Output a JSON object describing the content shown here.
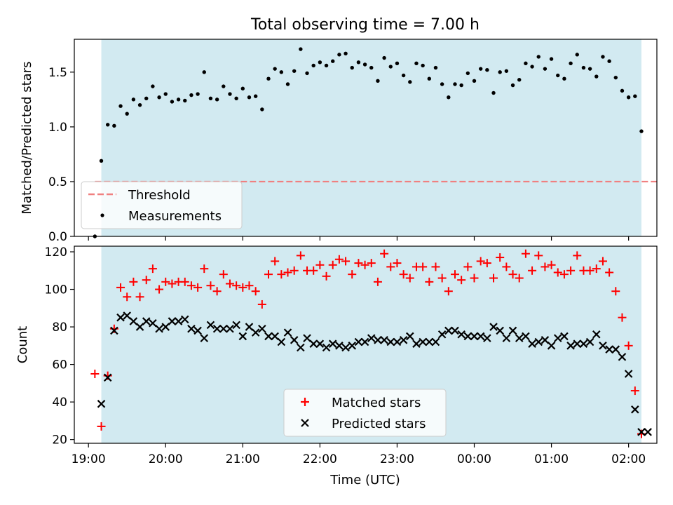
{
  "chart_data": [
    {
      "type": "scatter",
      "title": "Total observing time = 7.00 h",
      "xlabel": "",
      "ylabel": "Matched/Predicted stars",
      "ylim": [
        0,
        1.8
      ],
      "yticks": [
        "0.0",
        "0.5",
        "1.0",
        "1.5"
      ],
      "ytick_values": [
        0,
        0.5,
        1.0,
        1.5
      ],
      "observing_window": [
        "19:10",
        "02:10"
      ],
      "threshold": {
        "name": "Threshold",
        "value": 0.5,
        "color": "#f08080"
      },
      "legend": {
        "placement": "lower-left",
        "entries": [
          "Threshold",
          "Measurements"
        ]
      },
      "series": [
        {
          "name": "Measurements",
          "color": "#000000",
          "x": [
            "19:05",
            "19:10",
            "19:15",
            "19:20",
            "19:25",
            "19:30",
            "19:35",
            "19:40",
            "19:45",
            "19:50",
            "19:55",
            "20:00",
            "20:05",
            "20:10",
            "20:15",
            "20:20",
            "20:25",
            "20:30",
            "20:35",
            "20:40",
            "20:45",
            "20:50",
            "20:55",
            "21:00",
            "21:05",
            "21:10",
            "21:15",
            "21:20",
            "21:25",
            "21:30",
            "21:35",
            "21:40",
            "21:45",
            "21:50",
            "21:55",
            "22:00",
            "22:05",
            "22:10",
            "22:15",
            "22:20",
            "22:25",
            "22:30",
            "22:35",
            "22:40",
            "22:45",
            "22:50",
            "22:55",
            "23:00",
            "23:05",
            "23:10",
            "23:15",
            "23:20",
            "23:25",
            "23:30",
            "23:35",
            "23:40",
            "23:45",
            "23:50",
            "23:55",
            "00:00",
            "00:05",
            "00:10",
            "00:15",
            "00:20",
            "00:25",
            "00:30",
            "00:35",
            "00:40",
            "00:45",
            "00:50",
            "00:55",
            "01:00",
            "01:05",
            "01:10",
            "01:15",
            "01:20",
            "01:25",
            "01:30",
            "01:35",
            "01:40",
            "01:45",
            "01:50",
            "01:55",
            "02:00",
            "02:05",
            "02:10"
          ],
          "y": [
            0.0,
            0.69,
            1.02,
            1.01,
            1.19,
            1.12,
            1.25,
            1.2,
            1.26,
            1.37,
            1.27,
            1.3,
            1.23,
            1.25,
            1.24,
            1.29,
            1.3,
            1.5,
            1.26,
            1.25,
            1.37,
            1.3,
            1.26,
            1.35,
            1.27,
            1.28,
            1.16,
            1.44,
            1.53,
            1.5,
            1.39,
            1.51,
            1.71,
            1.49,
            1.56,
            1.59,
            1.56,
            1.6,
            1.66,
            1.67,
            1.54,
            1.59,
            1.57,
            1.54,
            1.42,
            1.63,
            1.55,
            1.58,
            1.47,
            1.41,
            1.58,
            1.56,
            1.44,
            1.54,
            1.39,
            1.27,
            1.39,
            1.38,
            1.49,
            1.42,
            1.53,
            1.52,
            1.31,
            1.5,
            1.51,
            1.38,
            1.43,
            1.58,
            1.55,
            1.64,
            1.53,
            1.62,
            1.47,
            1.44,
            1.58,
            1.66,
            1.54,
            1.53,
            1.46,
            1.64,
            1.6,
            1.45,
            1.33,
            1.27,
            1.28,
            0.96
          ]
        }
      ]
    },
    {
      "type": "scatter",
      "title": "",
      "xlabel": "Time (UTC)",
      "ylabel": "Count",
      "ylim": [
        18,
        123
      ],
      "yticks": [
        "20",
        "40",
        "60",
        "80",
        "100",
        "120"
      ],
      "ytick_values": [
        20,
        40,
        60,
        80,
        100,
        120
      ],
      "xticks": [
        "19:00",
        "20:00",
        "21:00",
        "22:00",
        "23:00",
        "00:00",
        "01:00",
        "02:00"
      ],
      "observing_window": [
        "19:10",
        "02:10"
      ],
      "legend": {
        "placement": "lower-center",
        "entries": [
          "Matched stars",
          "Predicted stars"
        ]
      },
      "series": [
        {
          "name": "Matched stars",
          "color": "#ff0000",
          "x": [
            "19:05",
            "19:10",
            "19:15",
            "19:20",
            "19:25",
            "19:30",
            "19:35",
            "19:40",
            "19:45",
            "19:50",
            "19:55",
            "20:00",
            "20:05",
            "20:10",
            "20:15",
            "20:20",
            "20:25",
            "20:30",
            "20:35",
            "20:40",
            "20:45",
            "20:50",
            "20:55",
            "21:00",
            "21:05",
            "21:10",
            "21:15",
            "21:20",
            "21:25",
            "21:30",
            "21:35",
            "21:40",
            "21:45",
            "21:50",
            "21:55",
            "22:00",
            "22:05",
            "22:10",
            "22:15",
            "22:20",
            "22:25",
            "22:30",
            "22:35",
            "22:40",
            "22:45",
            "22:50",
            "22:55",
            "23:00",
            "23:05",
            "23:10",
            "23:15",
            "23:20",
            "23:25",
            "23:30",
            "23:35",
            "23:40",
            "23:45",
            "23:50",
            "23:55",
            "00:00",
            "00:05",
            "00:10",
            "00:15",
            "00:20",
            "00:25",
            "00:30",
            "00:35",
            "00:40",
            "00:45",
            "00:50",
            "00:55",
            "01:00",
            "01:05",
            "01:10",
            "01:15",
            "01:20",
            "01:25",
            "01:30",
            "01:35",
            "01:40",
            "01:45",
            "01:50",
            "01:55",
            "02:00",
            "02:05",
            "02:10"
          ],
          "y": [
            55,
            27,
            54,
            79,
            101,
            96,
            104,
            96,
            105,
            111,
            100,
            104,
            103,
            104,
            104,
            102,
            101,
            111,
            102,
            99,
            108,
            103,
            102,
            101,
            102,
            99,
            92,
            108,
            115,
            108,
            109,
            110,
            118,
            110,
            110,
            113,
            107,
            113,
            116,
            115,
            108,
            114,
            113,
            114,
            104,
            119,
            112,
            114,
            108,
            106,
            112,
            112,
            104,
            112,
            106,
            99,
            108,
            105,
            112,
            106,
            115,
            114,
            106,
            117,
            112,
            108,
            106,
            119,
            110,
            118,
            112,
            113,
            109,
            108,
            110,
            118,
            110,
            110,
            111,
            115,
            109,
            99,
            85,
            70,
            46,
            23
          ]
        },
        {
          "name": "Predicted stars",
          "color": "#000000",
          "x": [
            "19:10",
            "19:15",
            "19:20",
            "19:25",
            "19:30",
            "19:35",
            "19:40",
            "19:45",
            "19:50",
            "19:55",
            "20:00",
            "20:05",
            "20:10",
            "20:15",
            "20:20",
            "20:25",
            "20:30",
            "20:35",
            "20:40",
            "20:45",
            "20:50",
            "20:55",
            "21:00",
            "21:05",
            "21:10",
            "21:15",
            "21:20",
            "21:25",
            "21:30",
            "21:35",
            "21:40",
            "21:45",
            "21:50",
            "21:55",
            "22:00",
            "22:05",
            "22:10",
            "22:15",
            "22:20",
            "22:25",
            "22:30",
            "22:35",
            "22:40",
            "22:45",
            "22:50",
            "22:55",
            "23:00",
            "23:05",
            "23:10",
            "23:15",
            "23:20",
            "23:25",
            "23:30",
            "23:35",
            "23:40",
            "23:45",
            "23:50",
            "23:55",
            "00:00",
            "00:05",
            "00:10",
            "00:15",
            "00:20",
            "00:25",
            "00:30",
            "00:35",
            "00:40",
            "00:45",
            "00:50",
            "00:55",
            "01:00",
            "01:05",
            "01:10",
            "01:15",
            "01:20",
            "01:25",
            "01:30",
            "01:35",
            "01:40",
            "01:45",
            "01:50",
            "01:55",
            "02:00",
            "02:05",
            "02:10",
            "02:15"
          ],
          "y": [
            39,
            53,
            78,
            85,
            86,
            83,
            80,
            83,
            82,
            79,
            80,
            83,
            83,
            84,
            79,
            78,
            74,
            81,
            79,
            79,
            79,
            81,
            75,
            80,
            77,
            79,
            75,
            75,
            72,
            77,
            73,
            69,
            74,
            71,
            71,
            69,
            71,
            70,
            69,
            70,
            72,
            72,
            74,
            73,
            73,
            72,
            72,
            73,
            75,
            71,
            72,
            72,
            72,
            76,
            78,
            78,
            76,
            75,
            75,
            75,
            74,
            80,
            78,
            74,
            78,
            74,
            75,
            71,
            72,
            73,
            70,
            74,
            75,
            70,
            71,
            71,
            72,
            76,
            70,
            68,
            68,
            64,
            55,
            36,
            24,
            24
          ]
        }
      ]
    }
  ]
}
